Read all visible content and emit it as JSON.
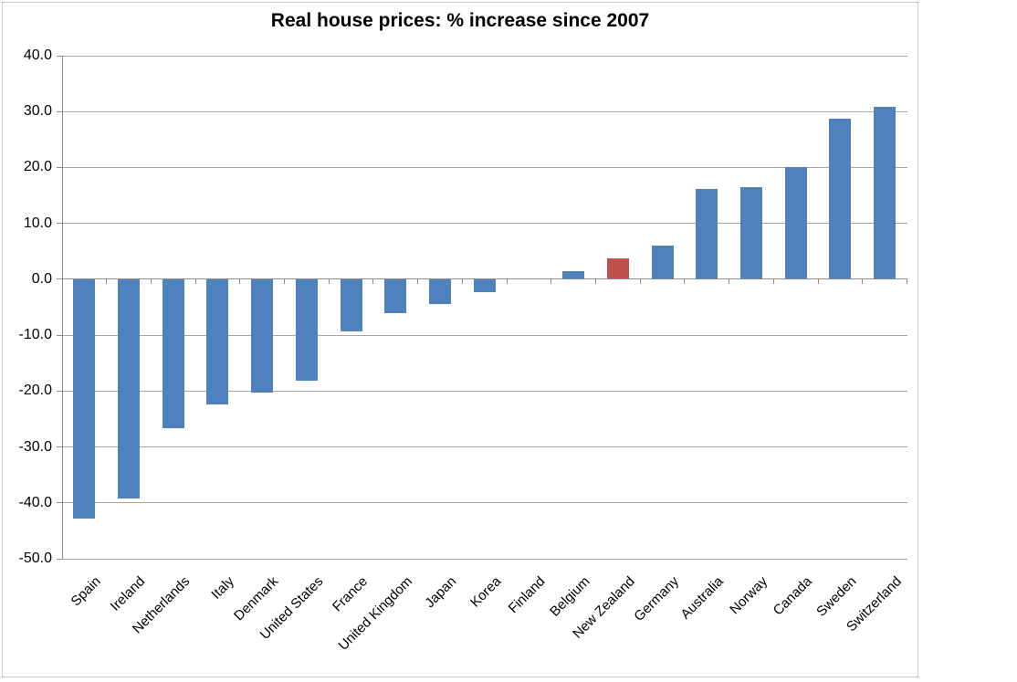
{
  "chart_data": {
    "type": "bar",
    "title": "Real house prices: % increase since 2007",
    "categories": [
      "Spain",
      "Ireland",
      "Netherlands",
      "Italy",
      "Denmark",
      "United States",
      "France",
      "United Kingdom",
      "Japan",
      "Korea",
      "Finland",
      "Belgium",
      "New Zealand",
      "Germany",
      "Australia",
      "Norway",
      "Canada",
      "Sweden",
      "Switzerland"
    ],
    "values": [
      -42.8,
      -39.2,
      -26.6,
      -22.4,
      -20.2,
      -18.2,
      -9.3,
      -6.0,
      -4.4,
      -2.3,
      0.0,
      1.4,
      3.7,
      6.0,
      16.2,
      16.4,
      20.0,
      28.8,
      30.8
    ],
    "highlight": {
      "index": 12,
      "category": "New Zealand",
      "color": "#C0504D"
    },
    "bar_color": "#4F81BD",
    "ylim": [
      -50,
      40
    ],
    "ytick_interval": 10,
    "ytick_labels": [
      "40.0",
      "30.0",
      "20.0",
      "10.0",
      "0.0",
      "-10.0",
      "-20.0",
      "-30.0",
      "-40.0",
      "-50.0"
    ],
    "xlabel": "",
    "ylabel": "",
    "legend": "none",
    "grid": "horizontal",
    "gridline_color": "#A6A6A6",
    "axis_color": "#8C8C8C",
    "frame_border_color": "#C9C9C9",
    "label_rotation_deg": -45
  }
}
